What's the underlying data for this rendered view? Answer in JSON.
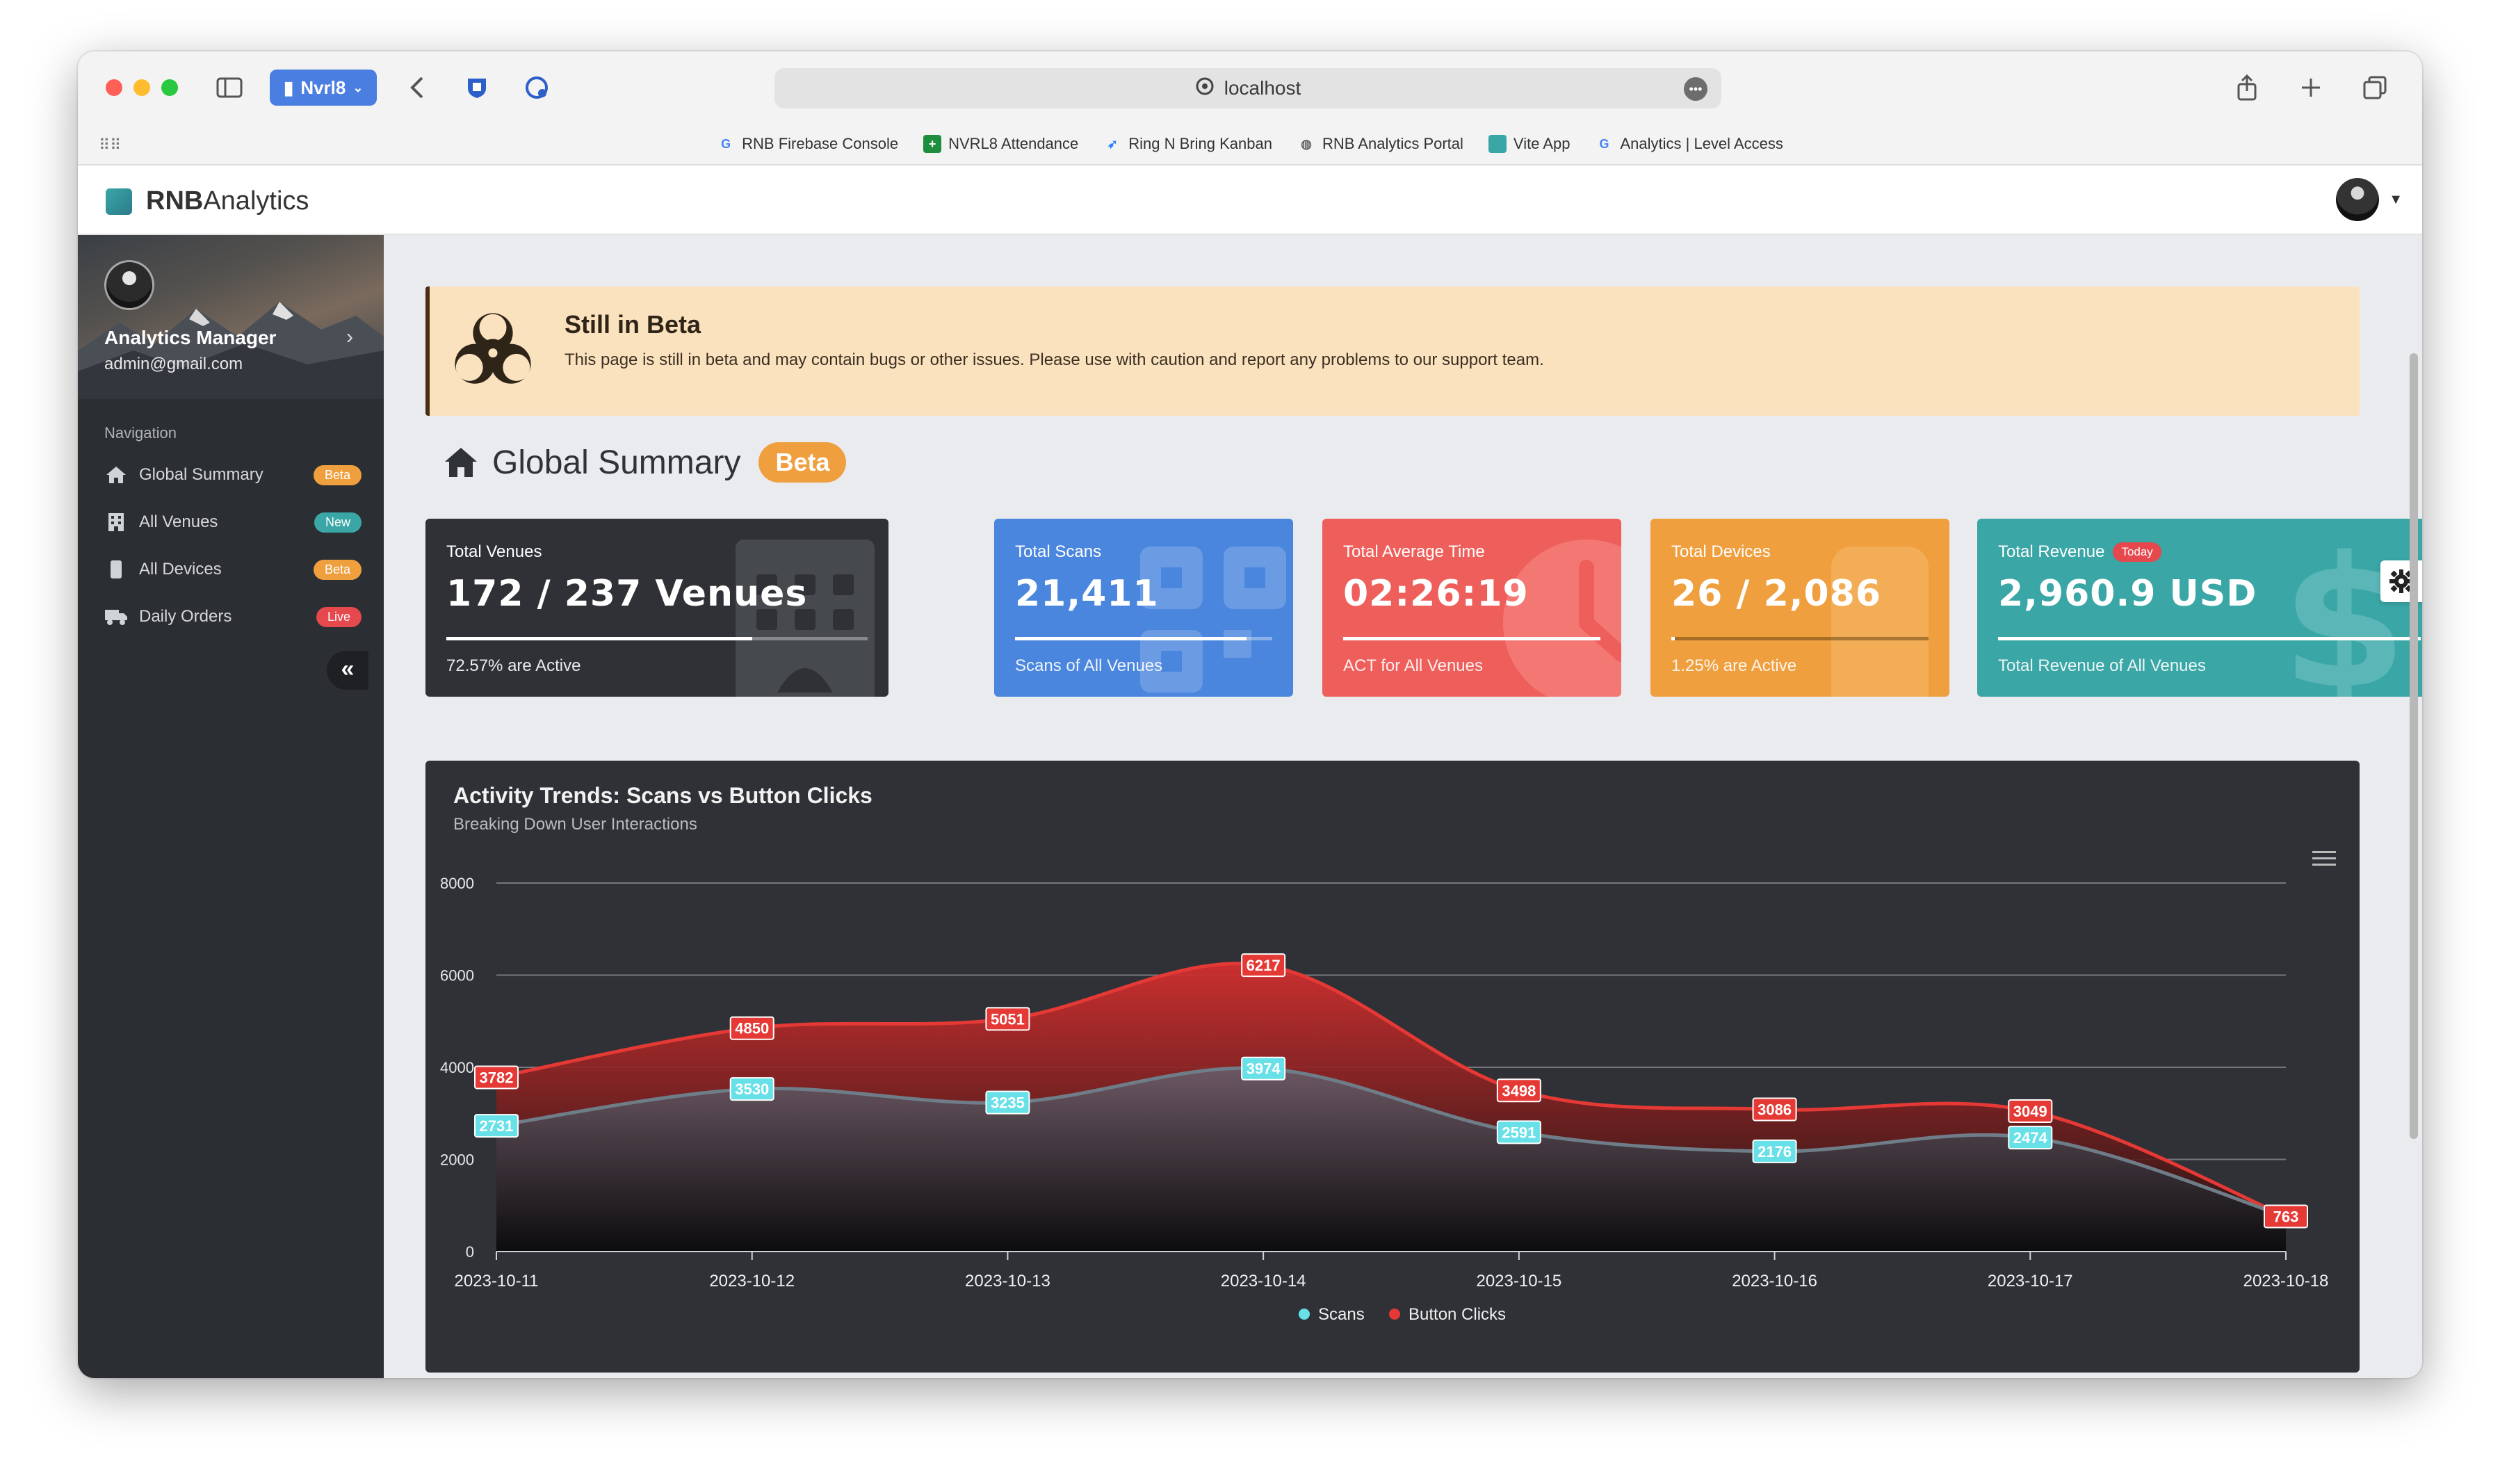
{
  "browser": {
    "profile_label": "Nvrl8",
    "url": "localhost",
    "bookmarks": [
      {
        "label": "RNB Firebase Console",
        "icon": "google-icon",
        "color": "#4285f4"
      },
      {
        "label": "NVRL8 Attendance",
        "icon": "sheets-icon",
        "color": "#1e8e3e"
      },
      {
        "label": "Ring N Bring Kanban",
        "icon": "jira-icon",
        "color": "#2684ff"
      },
      {
        "label": "RNB Analytics Portal",
        "icon": "globe-icon",
        "color": "#666666"
      },
      {
        "label": "Vite App",
        "icon": "vite-icon",
        "color": "#3aa6a6"
      },
      {
        "label": "Analytics | Level Access",
        "icon": "google-icon",
        "color": "#4285f4"
      }
    ]
  },
  "app": {
    "brand_bold": "RNB",
    "brand_light": "Analytics"
  },
  "sidebar": {
    "user_name": "Analytics Manager",
    "user_email": "admin@gmail.com",
    "nav_title": "Navigation",
    "items": [
      {
        "label": "Global Summary",
        "icon": "home-icon",
        "badge": "Beta",
        "badge_color": "#ef9f3e"
      },
      {
        "label": "All Venues",
        "icon": "building-icon",
        "badge": "New",
        "badge_color": "#3aa6a6"
      },
      {
        "label": "All Devices",
        "icon": "device-icon",
        "badge": "Beta",
        "badge_color": "#ef9f3e"
      },
      {
        "label": "Daily Orders",
        "icon": "truck-icon",
        "badge": "Live",
        "badge_color": "#e5484d"
      }
    ],
    "collapse_label": "«"
  },
  "banner": {
    "title": "Still in Beta",
    "text": "This page is still in beta and may contain bugs or other issues. Please use with caution and report any problems to our support team."
  },
  "page": {
    "title": "Global Summary",
    "badge": "Beta"
  },
  "cards": [
    {
      "label": "Total Venues",
      "value": "172 / 237 Venues",
      "sub": "72.57% are Active",
      "progress": 0.7257,
      "color": "#2f3136",
      "icon": "building-icon"
    },
    {
      "label": "Total Scans",
      "value": "21,411",
      "sub": "Scans of All Venues",
      "progress": 0.9,
      "color": "#4a86dd",
      "icon": "qr-icon"
    },
    {
      "label": "Total Average Time",
      "value": "02:26:19",
      "sub": "ACT for All Venues",
      "progress": 1.0,
      "color": "#ee5f5b",
      "icon": "clock-icon"
    },
    {
      "label": "Total Devices",
      "value": "26 / 2,086",
      "sub": "1.25% are Active",
      "progress": 0.0125,
      "color": "#ef9f3e",
      "icon": "device-icon"
    },
    {
      "label": "Total Revenue",
      "badge": "Today",
      "value": "2,960.9 USD",
      "sub": "Total Revenue of All Venues",
      "progress": 1.0,
      "color": "#3aa6a6",
      "icon": "dollar-icon"
    }
  ],
  "chart_data": {
    "type": "area",
    "title": "Activity Trends: Scans vs Button Clicks",
    "subtitle": "Breaking Down User Interactions",
    "categories": [
      "2023-10-11",
      "2023-10-12",
      "2023-10-13",
      "2023-10-14",
      "2023-10-15",
      "2023-10-16",
      "2023-10-17",
      "2023-10-18"
    ],
    "series": [
      {
        "name": "Scans",
        "values": [
          2731,
          3530,
          3235,
          3974,
          2591,
          2176,
          2474,
          763
        ],
        "color": "#67e0e8"
      },
      {
        "name": "Button Clicks",
        "values": [
          3782,
          4850,
          5051,
          6217,
          3498,
          3086,
          3049,
          763
        ],
        "color": "#e53935"
      }
    ],
    "ylim": [
      0,
      8000
    ],
    "yticks": [
      0,
      2000,
      4000,
      6000,
      8000
    ],
    "grid": true,
    "legend": "bottom-center"
  }
}
